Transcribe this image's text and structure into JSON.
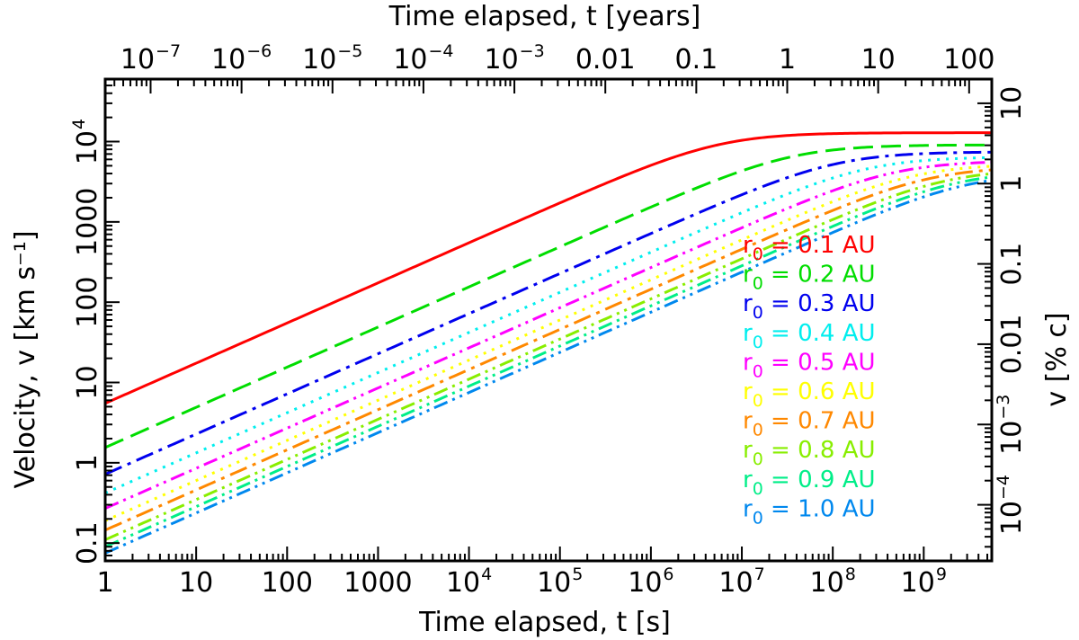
{
  "chart_data": {
    "type": "line",
    "title": "",
    "xlabel": "Time elapsed, t [s]",
    "ylabel": "Velocity, v [km s⁻¹]",
    "x2label": "Time elapsed, t [years]",
    "y2label": "v [% c]",
    "xscale": "log",
    "yscale": "log",
    "xlim": [
      1,
      5600000000
    ],
    "ylim": [
      0.06,
      60000
    ],
    "x_ticks": [
      {
        "value": 1,
        "label": "1"
      },
      {
        "value": 10,
        "label": "10"
      },
      {
        "value": 100,
        "label": "100"
      },
      {
        "value": 1000,
        "label": "1000"
      },
      {
        "value": 10000,
        "base": "10",
        "exp": "4"
      },
      {
        "value": 100000,
        "base": "10",
        "exp": "5"
      },
      {
        "value": 1000000,
        "base": "10",
        "exp": "6"
      },
      {
        "value": 10000000,
        "base": "10",
        "exp": "7"
      },
      {
        "value": 100000000,
        "base": "10",
        "exp": "8"
      },
      {
        "value": 1000000000,
        "base": "10",
        "exp": "9"
      }
    ],
    "y_ticks": [
      {
        "value": 0.1,
        "label": "0.1"
      },
      {
        "value": 1,
        "label": "1"
      },
      {
        "value": 10,
        "label": "10"
      },
      {
        "value": 100,
        "label": "100"
      },
      {
        "value": 1000,
        "label": "1000"
      },
      {
        "value": 10000,
        "base": "10",
        "exp": "4"
      }
    ],
    "x2_ticks": [
      {
        "value": 1e-07,
        "base": "10",
        "exp": "−7"
      },
      {
        "value": 1e-06,
        "base": "10",
        "exp": "−6"
      },
      {
        "value": 1e-05,
        "base": "10",
        "exp": "−5"
      },
      {
        "value": 0.0001,
        "base": "10",
        "exp": "−4"
      },
      {
        "value": 0.001,
        "base": "10",
        "exp": "−3"
      },
      {
        "value": 0.01,
        "label": "0.01"
      },
      {
        "value": 0.1,
        "label": "0.1"
      },
      {
        "value": 1,
        "label": "1"
      },
      {
        "value": 10,
        "label": "10"
      },
      {
        "value": 100,
        "label": "100"
      }
    ],
    "y2_ticks": [
      {
        "value": 0.0001,
        "base": "10",
        "exp": "−4"
      },
      {
        "value": 0.001,
        "base": "10",
        "exp": "−3"
      },
      {
        "value": 0.01,
        "label": "0.01"
      },
      {
        "value": 0.1,
        "label": "0.1"
      },
      {
        "value": 1,
        "label": "1"
      },
      {
        "value": 10,
        "label": "10"
      }
    ],
    "seconds_per_year": 31557600,
    "kms_per_percent_c": 2997.92458,
    "legend_position": "center-right",
    "legend_suffix": "AU",
    "series": [
      {
        "name": "r0 = 0.1 AU",
        "r0": "0.1",
        "color": "#ff0000",
        "dash": "solid",
        "v_start": 5.5,
        "v_terminal": 12900
      },
      {
        "name": "r0 = 0.2 AU",
        "r0": "0.2",
        "color": "#00dd00",
        "dash": "dashed",
        "v_start": 1.55,
        "v_terminal": 9100
      },
      {
        "name": "r0 = 0.3 AU",
        "r0": "0.3",
        "color": "#0000ee",
        "dash": "dash-dot",
        "v_start": 0.72,
        "v_terminal": 7450
      },
      {
        "name": "r0 = 0.4 AU",
        "r0": "0.4",
        "color": "#00eeee",
        "dash": "dotted",
        "v_start": 0.42,
        "v_terminal": 6450
      },
      {
        "name": "r0 = 0.5 AU",
        "r0": "0.5",
        "color": "#ff00ff",
        "dash": "dash-dot-dot",
        "v_start": 0.27,
        "v_terminal": 5760
      },
      {
        "name": "r0 = 0.6 AU",
        "r0": "0.6",
        "color": "#ffff00",
        "dash": "dotted",
        "v_start": 0.19,
        "v_terminal": 5260
      },
      {
        "name": "r0 = 0.7 AU",
        "r0": "0.7",
        "color": "#ff8800",
        "dash": "dash-dot",
        "v_start": 0.145,
        "v_terminal": 4870
      },
      {
        "name": "r0 = 0.8 AU",
        "r0": "0.8",
        "color": "#88ee00",
        "dash": "dash-dot-dot",
        "v_start": 0.11,
        "v_terminal": 4560
      },
      {
        "name": "r0 = 0.9 AU",
        "r0": "0.9",
        "color": "#00ee88",
        "dash": "dash-dot-dot",
        "v_start": 0.09,
        "v_terminal": 4300
      },
      {
        "name": "r0 = 1.0 AU",
        "r0": "1.0",
        "color": "#0088ee",
        "dash": "dash-dot-dot",
        "v_start": 0.075,
        "v_terminal": 4080
      }
    ]
  }
}
